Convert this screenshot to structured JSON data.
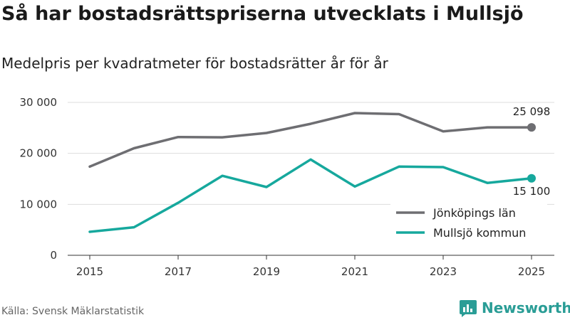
{
  "title": "Så har bostadsrättspriserna utvecklats i Mullsjö",
  "subtitle": "Medelpris per kvadratmeter för bostadsrätter år för år",
  "source": "Källa: Svensk Mäklarstatistik",
  "brand": {
    "name": "Newsworthy",
    "icon": "newsworthy-logo-icon"
  },
  "colors": {
    "jonkoping": "#6e6e72",
    "mullsjo": "#16a89d",
    "grid": "#dddddd",
    "axis": "#333333"
  },
  "chart_data": {
    "type": "line",
    "title": "Så har bostadsrättspriserna utvecklats i Mullsjö",
    "subtitle": "Medelpris per kvadratmeter för bostadsrätter år för år",
    "xlabel": "",
    "ylabel": "",
    "x": [
      2015,
      2016,
      2017,
      2018,
      2019,
      2020,
      2021,
      2022,
      2023,
      2024,
      2025
    ],
    "x_ticks": [
      "2015",
      "2017",
      "2019",
      "2021",
      "2023",
      "2025"
    ],
    "y_ticks": [
      "0",
      "10 000",
      "20 000",
      "30 000"
    ],
    "ylim": [
      0,
      30000
    ],
    "grid": true,
    "legend_position": "bottom-right",
    "series": [
      {
        "name": "Jönköpings län",
        "color": "#6e6e72",
        "values": [
          17400,
          21000,
          23200,
          23150,
          24000,
          25800,
          27900,
          27700,
          24300,
          25100,
          25098
        ],
        "end_label": "25 098"
      },
      {
        "name": "Mullsjö kommun",
        "color": "#16a89d",
        "values": [
          4600,
          5500,
          10300,
          15600,
          13400,
          18800,
          13500,
          17400,
          17300,
          14200,
          15100
        ],
        "end_label": "15 100"
      }
    ]
  }
}
